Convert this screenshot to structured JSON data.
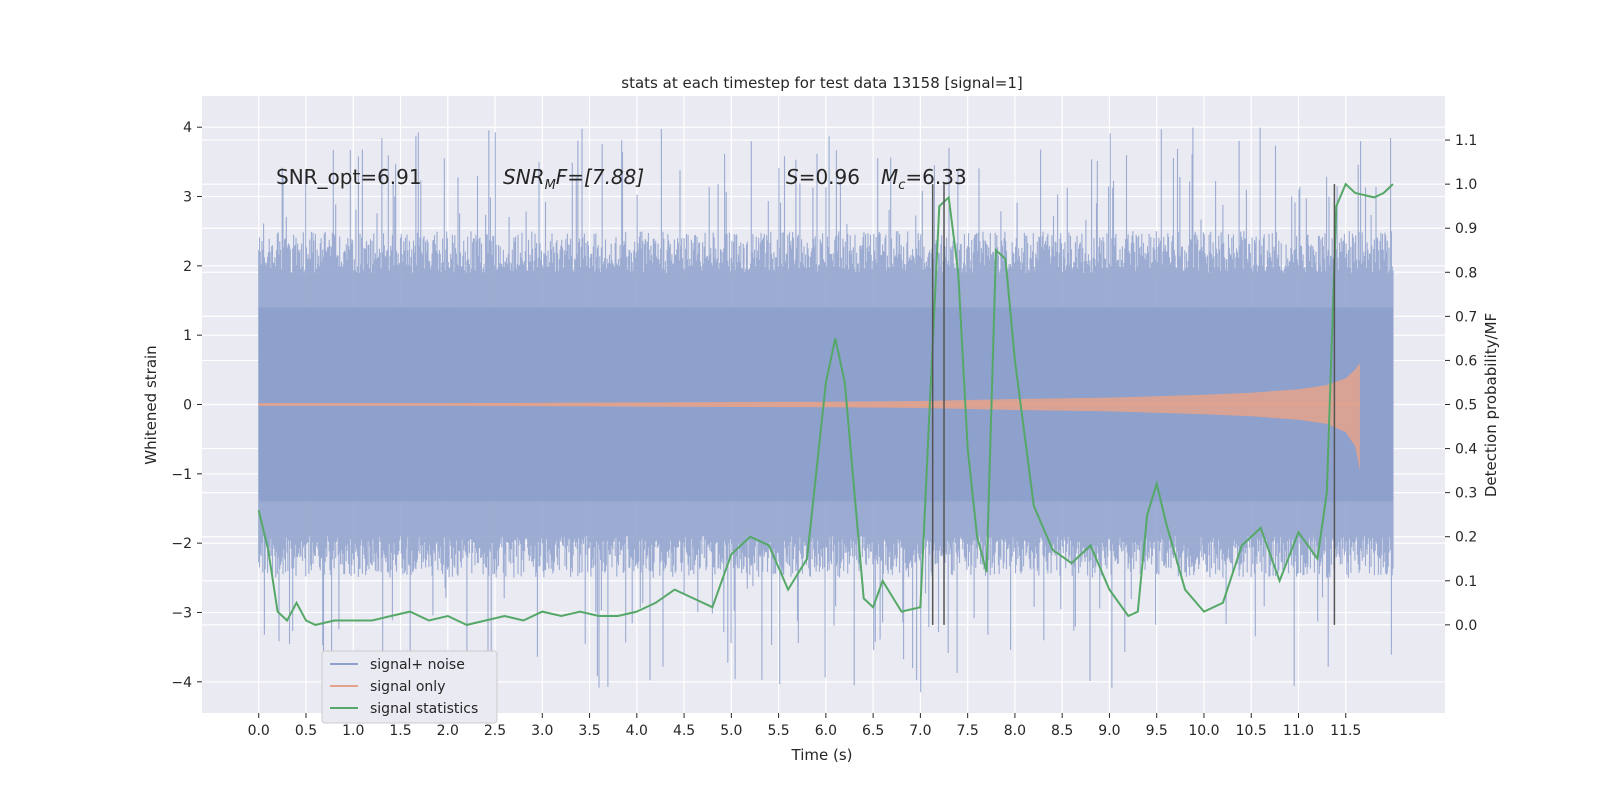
{
  "chart_data": {
    "type": "line",
    "title": "stats at each timestep for test data 13158 [signal=1]",
    "xlabel": "Time (s)",
    "ylabel_left": "Whitened strain",
    "ylabel_right": "Detection probability/MF",
    "xlim": [
      -0.6,
      12.55
    ],
    "ylim_left": [
      -4.45,
      4.45
    ],
    "ylim_right": [
      -0.2,
      1.2
    ],
    "x_ticks": [
      "0.0",
      "0.5",
      "1.0",
      "1.5",
      "2.0",
      "2.5",
      "3.0",
      "3.5",
      "4.0",
      "4.5",
      "5.0",
      "5.5",
      "6.0",
      "6.5",
      "7.0",
      "7.5",
      "8.0",
      "8.5",
      "9.0",
      "9.5",
      "10.0",
      "10.5",
      "11.0",
      "11.5"
    ],
    "y_ticks_left": [
      "4",
      "3",
      "2",
      "1",
      "0",
      "−1",
      "−2",
      "−3",
      "−4"
    ],
    "y_ticks_right": [
      "1.1",
      "1.0",
      "0.9",
      "0.8",
      "0.7",
      "0.6",
      "0.5",
      "0.4",
      "0.3",
      "0.2",
      "0.1",
      "0.0"
    ],
    "grid": true,
    "legend_position": "lower-left",
    "annotations": {
      "snr_opt": "SNR_opt=6.91",
      "snr_mf_main": "SNR",
      "snr_mf_sub": "M",
      "snr_mf_tail": "F=[7.88]",
      "s_main": "S",
      "s_tail": "=0.96",
      "mc_main": "M",
      "mc_sub": "c",
      "mc_tail": "=6.33"
    },
    "vertical_lines_x": [
      7.13,
      7.25,
      11.38
    ],
    "series": [
      {
        "name": "signal+ noise",
        "color": "#8da0cb",
        "x_range": [
          0.0,
          12.0
        ],
        "band": {
          "ymin": -1.4,
          "ymax": 1.4
        },
        "note_values": "dense noise, envelope mostly within about ±1.4, spikes to about ±4"
      },
      {
        "name": "signal only",
        "color": "#e5a28a",
        "envelope": {
          "x": [
            0.0,
            2.0,
            4.0,
            6.0,
            7.0,
            8.0,
            9.0,
            10.0,
            10.5,
            11.0,
            11.3,
            11.5,
            11.6,
            11.65
          ],
          "upper": [
            0.02,
            0.02,
            0.03,
            0.04,
            0.05,
            0.08,
            0.1,
            0.14,
            0.17,
            0.22,
            0.28,
            0.38,
            0.5,
            0.6
          ],
          "lower": [
            -0.02,
            -0.02,
            -0.03,
            -0.04,
            -0.05,
            -0.08,
            -0.1,
            -0.14,
            -0.17,
            -0.22,
            -0.28,
            -0.4,
            -0.6,
            -0.95
          ]
        }
      },
      {
        "name": "signal statistics",
        "color": "#55a868",
        "axis": "right",
        "x": [
          0.0,
          0.1,
          0.2,
          0.3,
          0.4,
          0.5,
          0.6,
          0.8,
          1.0,
          1.2,
          1.4,
          1.6,
          1.8,
          2.0,
          2.2,
          2.4,
          2.6,
          2.8,
          3.0,
          3.2,
          3.4,
          3.6,
          3.8,
          4.0,
          4.2,
          4.4,
          4.6,
          4.8,
          5.0,
          5.2,
          5.4,
          5.6,
          5.8,
          6.0,
          6.1,
          6.2,
          6.4,
          6.5,
          6.6,
          6.8,
          7.0,
          7.1,
          7.2,
          7.3,
          7.4,
          7.5,
          7.6,
          7.7,
          7.8,
          7.9,
          8.0,
          8.2,
          8.4,
          8.6,
          8.8,
          9.0,
          9.2,
          9.3,
          9.4,
          9.5,
          9.6,
          9.8,
          10.0,
          10.2,
          10.4,
          10.6,
          10.8,
          11.0,
          11.2,
          11.3,
          11.4,
          11.5,
          11.6,
          11.8,
          11.9,
          12.0
        ],
        "values": [
          0.26,
          0.17,
          0.03,
          0.01,
          0.05,
          0.01,
          0.0,
          0.01,
          0.01,
          0.01,
          0.02,
          0.03,
          0.01,
          0.02,
          0.0,
          0.01,
          0.02,
          0.01,
          0.03,
          0.02,
          0.03,
          0.02,
          0.02,
          0.03,
          0.05,
          0.08,
          0.06,
          0.04,
          0.16,
          0.2,
          0.18,
          0.08,
          0.15,
          0.55,
          0.65,
          0.55,
          0.06,
          0.04,
          0.1,
          0.03,
          0.04,
          0.5,
          0.95,
          0.97,
          0.8,
          0.4,
          0.2,
          0.12,
          0.85,
          0.83,
          0.6,
          0.27,
          0.17,
          0.14,
          0.18,
          0.08,
          0.02,
          0.03,
          0.25,
          0.32,
          0.23,
          0.08,
          0.03,
          0.05,
          0.18,
          0.22,
          0.1,
          0.21,
          0.15,
          0.3,
          0.95,
          1.0,
          0.98,
          0.97,
          0.98,
          1.0
        ]
      }
    ]
  }
}
